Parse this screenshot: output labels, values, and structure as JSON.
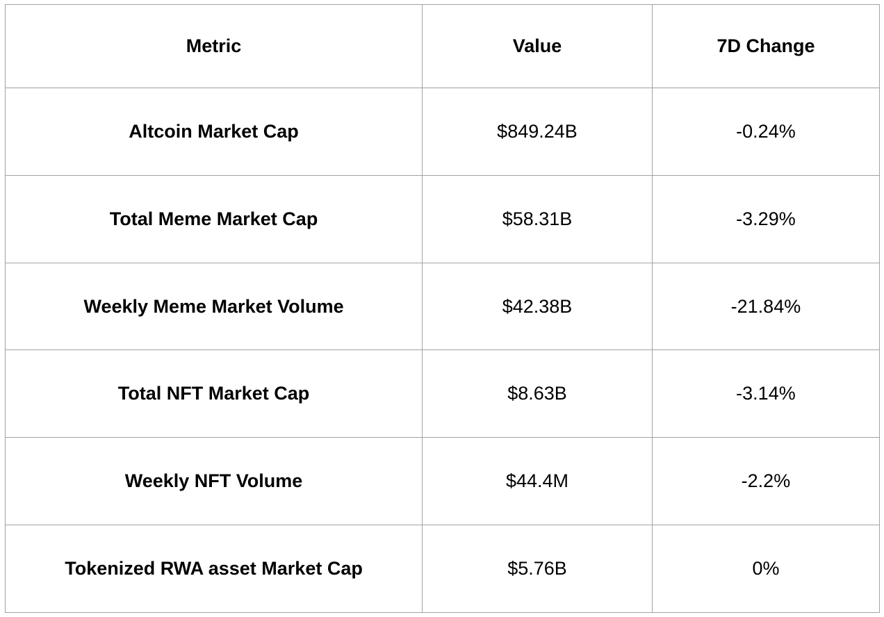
{
  "table": {
    "columns": {
      "metric": "Metric",
      "value": "Value",
      "change": "7D Change"
    },
    "rows": [
      {
        "metric": "Altcoin Market Cap",
        "value": "$849.24B",
        "change": "-0.24%"
      },
      {
        "metric": "Total Meme Market Cap",
        "value": "$58.31B",
        "change": "-3.29%"
      },
      {
        "metric": "Weekly Meme Market Volume",
        "value": "$42.38B",
        "change": "-21.84%"
      },
      {
        "metric": "Total NFT Market Cap",
        "value": "$8.63B",
        "change": "-3.14%"
      },
      {
        "metric": "Weekly NFT Volume",
        "value": "$44.4M",
        "change": "-2.2%"
      },
      {
        "metric": "Tokenized RWA asset Market Cap",
        "value": "$5.76B",
        "change": "0%"
      }
    ],
    "border_color": "#a2a2a2",
    "text_color": "#000000",
    "background_color": "#ffffff"
  }
}
